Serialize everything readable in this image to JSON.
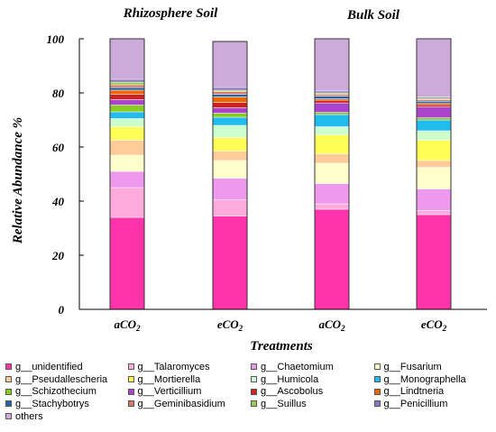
{
  "chart_data": {
    "type": "bar",
    "stacked": true,
    "title": "",
    "group_titles": [
      "Rhizosphere Soil",
      "Bulk  Soil"
    ],
    "xlabel": "Treatments",
    "ylabel": "Relative Abundance %",
    "ylim": [
      0,
      100
    ],
    "yticks": [
      0,
      20,
      40,
      60,
      80,
      100
    ],
    "categories": [
      {
        "base": "aCO",
        "sub": "2"
      },
      {
        "base": "eCO",
        "sub": "2"
      },
      {
        "base": "aCO",
        "sub": "2"
      },
      {
        "base": "eCO",
        "sub": "2"
      }
    ],
    "legend_position": "bottom",
    "series": [
      {
        "name": "g__unidentified",
        "color": "#ff33aa",
        "values": [
          34.0,
          34.5,
          37.0,
          35.0
        ]
      },
      {
        "name": "g__Talaromyces",
        "color": "#ffaadd",
        "values": [
          11.0,
          6.0,
          2.0,
          1.5
        ]
      },
      {
        "name": "g__Chaetomium",
        "color": "#ee99ee",
        "values": [
          6.0,
          8.0,
          7.5,
          8.0
        ]
      },
      {
        "name": "g__Fusarium",
        "color": "#ffffcc",
        "values": [
          6.0,
          6.5,
          7.5,
          8.0
        ]
      },
      {
        "name": "g__Pseudallescheria",
        "color": "#ffcc99",
        "values": [
          5.5,
          3.5,
          3.5,
          2.5
        ]
      },
      {
        "name": "g__Mortierella",
        "color": "#ffff55",
        "values": [
          5.0,
          5.0,
          7.0,
          7.5
        ]
      },
      {
        "name": "g__Humicola",
        "color": "#ccffcc",
        "values": [
          3.0,
          4.5,
          3.0,
          3.5
        ]
      },
      {
        "name": "g__Monographella",
        "color": "#22bbee",
        "values": [
          2.5,
          3.0,
          4.5,
          4.0
        ]
      },
      {
        "name": "g__Schizothecium",
        "color": "#88cc22",
        "values": [
          2.5,
          1.5,
          0.8,
          0.8
        ]
      },
      {
        "name": "g__Verticillium",
        "color": "#aa44cc",
        "values": [
          2.0,
          2.0,
          3.5,
          4.0
        ]
      },
      {
        "name": "g__Ascobolus",
        "color": "#cc2222",
        "values": [
          2.0,
          2.0,
          1.0,
          0.8
        ]
      },
      {
        "name": "g__Lindtneria",
        "color": "#ee6600",
        "values": [
          1.5,
          2.0,
          0.5,
          0.5
        ]
      },
      {
        "name": "g__Stachybotrys",
        "color": "#2266aa",
        "values": [
          1.0,
          1.0,
          1.0,
          0.8
        ]
      },
      {
        "name": "g__Geminibasidium",
        "color": "#dd7766",
        "values": [
          1.0,
          1.0,
          0.7,
          0.6
        ]
      },
      {
        "name": "g__Suillus",
        "color": "#99cc55",
        "values": [
          1.0,
          0.5,
          0.5,
          0.5
        ]
      },
      {
        "name": "g__Penicillium",
        "color": "#8877bb",
        "values": [
          1.0,
          1.0,
          0.7,
          0.5
        ]
      },
      {
        "name": "others",
        "color": "#ccaad9",
        "values": [
          15.0,
          17.0,
          19.3,
          21.5
        ]
      }
    ]
  }
}
